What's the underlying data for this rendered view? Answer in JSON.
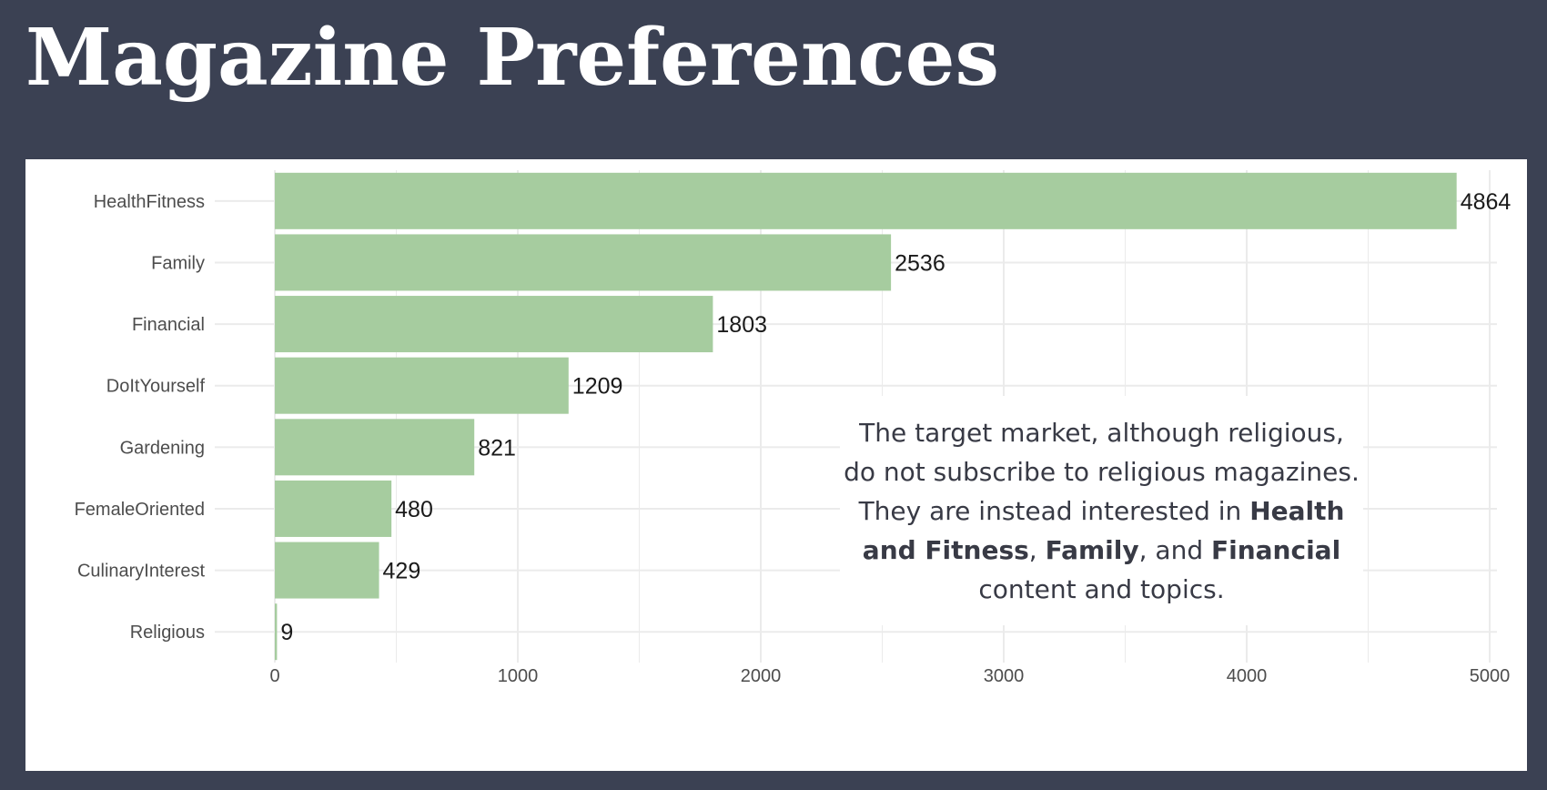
{
  "page": {
    "title": "Magazine Preferences"
  },
  "colors": {
    "background": "#3b4153",
    "panel": "#ffffff",
    "bar": "#a6cc9f",
    "grid": "#ebebeb"
  },
  "chart_data": {
    "type": "bar",
    "orientation": "horizontal",
    "categories": [
      "HealthFitness",
      "Family",
      "Financial",
      "DoItYourself",
      "Gardening",
      "FemaleOriented",
      "CulinaryInterest",
      "Religious"
    ],
    "values": [
      4864,
      2536,
      1803,
      1209,
      821,
      480,
      429,
      9
    ],
    "x_ticks": [
      0,
      1000,
      2000,
      3000,
      4000,
      5000
    ],
    "xlim": [
      0,
      5000
    ],
    "xlabel": "",
    "ylabel": "",
    "title": "",
    "grid": true,
    "legend": false,
    "data_labels": true
  },
  "callout": {
    "line1": "The target market, although religious,",
    "line2": "do not subscribe to religious magazines.",
    "line3a": "They are instead interested in ",
    "line3b": "Health",
    "line4a": "and Fitness",
    "line4b": ", ",
    "line4c": "Family",
    "line4d": ", and ",
    "line4e": "Financial",
    "line5": "content and topics."
  }
}
